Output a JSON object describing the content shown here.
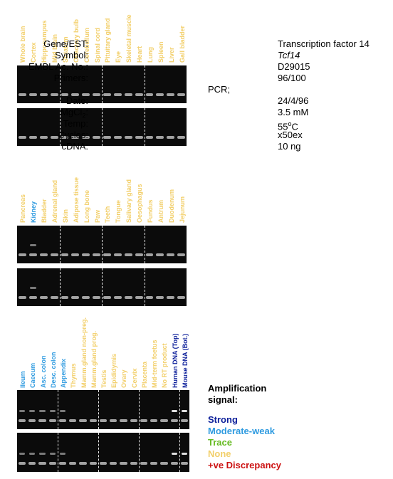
{
  "colors": {
    "strong": "#0c1f9a",
    "moderate": "#2f9be0",
    "trace": "#66bb22",
    "none": "#f2cf6a",
    "discrepancy": "#cc1111"
  },
  "info": {
    "gene_label": "Gene/EST:",
    "gene": "Transcription factor 14",
    "symbol_label": "Symbol:",
    "symbol": "Tcf14",
    "embl_label": "EMBL Ac. No.:",
    "embl": "D29015",
    "primers_label": "Primers:",
    "primers": "96/100",
    "pcr_label": "PCR;",
    "date_label": "Date:",
    "date": "24/4/96",
    "mgcl_label": "MgCl",
    "mgcl_sub": "2",
    "mgcl_colon": ":",
    "mgcl": "3.5 mM",
    "temp_label": "Temp:",
    "temp_value": "55",
    "temp_sup": "o",
    "temp_unit": "C",
    "cycles_label": "Cycles:",
    "cycles": "x50ex",
    "cdna_label": "cDNA:",
    "cdna": "10 ng"
  },
  "legend": {
    "title1": "Amplification",
    "title2": "signal:",
    "strong": "Strong",
    "moderate": "Moderate-weak",
    "trace": "Trace",
    "none": "None",
    "discrepancy": "+ve Discrepancy"
  },
  "panels": [
    {
      "lanes": [
        {
          "label": "Whole brain",
          "signal": "none"
        },
        {
          "label": "Cortex",
          "signal": "none"
        },
        {
          "label": "Hippocampus",
          "signal": "none"
        },
        {
          "label": "Mid brain",
          "signal": "none"
        },
        {
          "label": "Striatum",
          "signal": "none"
        },
        {
          "label": "Olfactory bulb",
          "signal": "none"
        },
        {
          "label": "Cerebellum",
          "signal": "none"
        },
        {
          "label": "Spinal cord",
          "signal": "none"
        },
        {
          "label": "Pituitary gland",
          "signal": "none"
        },
        {
          "label": "Eye",
          "signal": "none"
        },
        {
          "label": "Skeletal muscle",
          "signal": "none"
        },
        {
          "label": "Heart",
          "signal": "none"
        },
        {
          "label": "Lung",
          "signal": "none"
        },
        {
          "label": "Spleen",
          "signal": "none"
        },
        {
          "label": "Liver",
          "signal": "none"
        },
        {
          "label": "Gall bladder",
          "signal": "none"
        }
      ]
    },
    {
      "lanes": [
        {
          "label": "Pancreas",
          "signal": "none"
        },
        {
          "label": "Kidney",
          "signal": "moderate"
        },
        {
          "label": "Bladder",
          "signal": "none"
        },
        {
          "label": "Adrenal gland",
          "signal": "none"
        },
        {
          "label": "Skin",
          "signal": "none"
        },
        {
          "label": "Adipose tissue",
          "signal": "none"
        },
        {
          "label": "Long bone",
          "signal": "none"
        },
        {
          "label": "Paw",
          "signal": "none"
        },
        {
          "label": "Teeth",
          "signal": "none"
        },
        {
          "label": "Tongue",
          "signal": "none"
        },
        {
          "label": "Salivary gland",
          "signal": "none"
        },
        {
          "label": "Oesophagus",
          "signal": "none"
        },
        {
          "label": "Fundus",
          "signal": "none"
        },
        {
          "label": "Antrum",
          "signal": "none"
        },
        {
          "label": "Duodenum",
          "signal": "none"
        },
        {
          "label": "Jejunum",
          "signal": "none"
        }
      ]
    },
    {
      "lanes": [
        {
          "label": "Ileum",
          "signal": "moderate"
        },
        {
          "label": "Caecum",
          "signal": "moderate"
        },
        {
          "label": "Asc. colon",
          "signal": "moderate"
        },
        {
          "label": "Desc. colon",
          "signal": "moderate"
        },
        {
          "label": "Appendix",
          "signal": "moderate"
        },
        {
          "label": "Thymus",
          "signal": "none"
        },
        {
          "label": "Mamm.gland non-preg.",
          "signal": "none"
        },
        {
          "label": "Mamm.gland prog.",
          "signal": "none"
        },
        {
          "label": "Testis",
          "signal": "none"
        },
        {
          "label": "Epididymis",
          "signal": "none"
        },
        {
          "label": "Ovary",
          "signal": "none"
        },
        {
          "label": "Cervix",
          "signal": "none"
        },
        {
          "label": "Placenta",
          "signal": "none"
        },
        {
          "label": "Mid-term foetus",
          "signal": "none"
        },
        {
          "label": "No RT product",
          "signal": "none"
        },
        {
          "label": "Human DNA (Top)",
          "signal": "strong"
        },
        {
          "label": "Mouse DNA (Bot.)",
          "signal": "strong"
        }
      ]
    }
  ]
}
